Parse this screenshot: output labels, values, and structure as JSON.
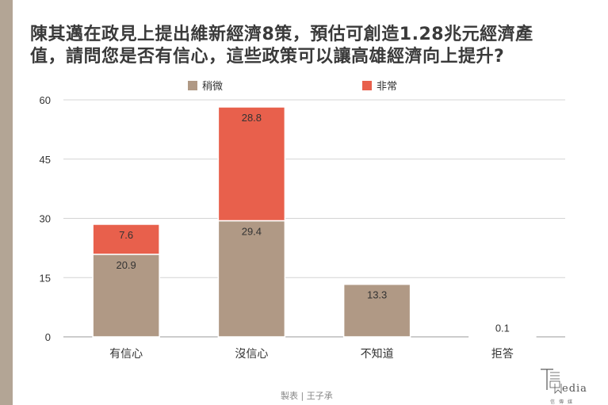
{
  "title_line1": "陳其邁在政見上提出維新經濟8策，預估可創造1.28兆元經濟產",
  "title_line2": "值，請問您是否有信心，這些政策可以讓高雄經濟向上提升?",
  "credit": "製表 | 王子承",
  "logo": {
    "text": "edia",
    "subtext": "信傳媒"
  },
  "colors": {
    "slightly": "#b09985",
    "very": "#e8604c",
    "grid": "#d4d4d4",
    "axis": "#999999"
  },
  "chart_data": {
    "type": "bar",
    "stacked": true,
    "categories": [
      "有信心",
      "沒信心",
      "不知道",
      "拒答"
    ],
    "series": [
      {
        "name": "稍微",
        "values": [
          20.9,
          29.4,
          13.3,
          0.1
        ]
      },
      {
        "name": "非常",
        "values": [
          7.6,
          28.8,
          null,
          null
        ]
      }
    ],
    "ylim": [
      0,
      60
    ],
    "yticks": [
      0,
      15,
      30,
      45,
      60
    ],
    "grid": true,
    "legend": "top-center"
  }
}
